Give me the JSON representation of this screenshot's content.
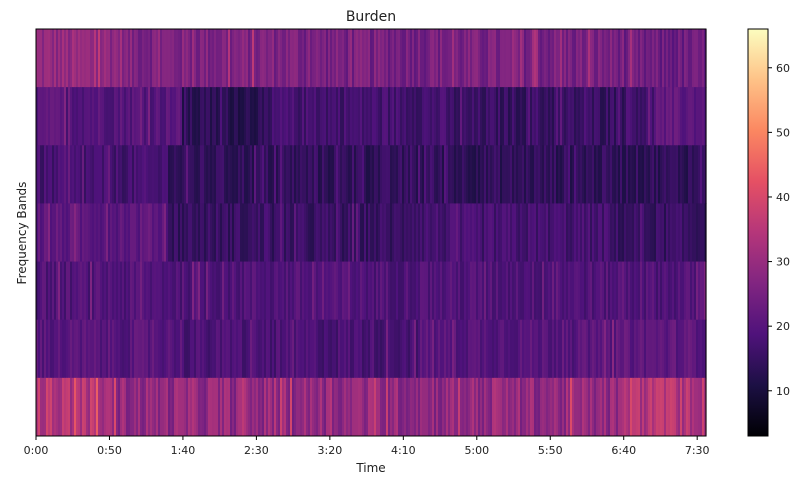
{
  "chart_data": {
    "type": "heatmap",
    "title": "Burden",
    "xlabel": "Time",
    "ylabel": "Frequency Bands",
    "colormap": "magma",
    "x_range_seconds": [
      0,
      456
    ],
    "x_ticks": [
      "0:00",
      "0:50",
      "1:40",
      "2:30",
      "3:20",
      "4:10",
      "5:00",
      "5:50",
      "6:40",
      "7:30"
    ],
    "x_tick_values_seconds": [
      0,
      50,
      100,
      150,
      200,
      250,
      300,
      350,
      400,
      450
    ],
    "bands": 7,
    "band_profiles": [
      {
        "segments": [
          [
            0,
            60,
            29
          ],
          [
            60,
            180,
            26
          ],
          [
            180,
            400,
            25
          ],
          [
            400,
            456,
            23
          ]
        ],
        "jitter": 4
      },
      {
        "segments": [
          [
            0,
            100,
            20
          ],
          [
            100,
            160,
            13
          ],
          [
            160,
            280,
            17
          ],
          [
            280,
            400,
            15
          ],
          [
            400,
            420,
            17
          ],
          [
            420,
            456,
            21
          ]
        ],
        "jitter": 3
      },
      {
        "segments": [
          [
            0,
            90,
            17
          ],
          [
            90,
            450,
            14
          ],
          [
            450,
            456,
            17
          ]
        ],
        "jitter": 3
      },
      {
        "segments": [
          [
            0,
            90,
            21
          ],
          [
            90,
            250,
            15
          ],
          [
            250,
            390,
            17
          ],
          [
            390,
            456,
            15
          ]
        ],
        "jitter": 3
      },
      {
        "segments": [
          [
            0,
            450,
            19
          ],
          [
            450,
            456,
            21
          ]
        ],
        "jitter": 3
      },
      {
        "segments": [
          [
            0,
            100,
            20
          ],
          [
            100,
            260,
            18
          ],
          [
            260,
            390,
            20
          ],
          [
            390,
            456,
            21
          ]
        ],
        "jitter": 3
      },
      {
        "segments": [
          [
            0,
            45,
            34
          ],
          [
            45,
            400,
            29
          ],
          [
            400,
            456,
            34
          ]
        ],
        "jitter": 5
      }
    ],
    "colorbar": {
      "min": 3,
      "max": 66,
      "ticks": [
        10,
        20,
        30,
        40,
        50,
        60
      ]
    },
    "grid": false
  }
}
